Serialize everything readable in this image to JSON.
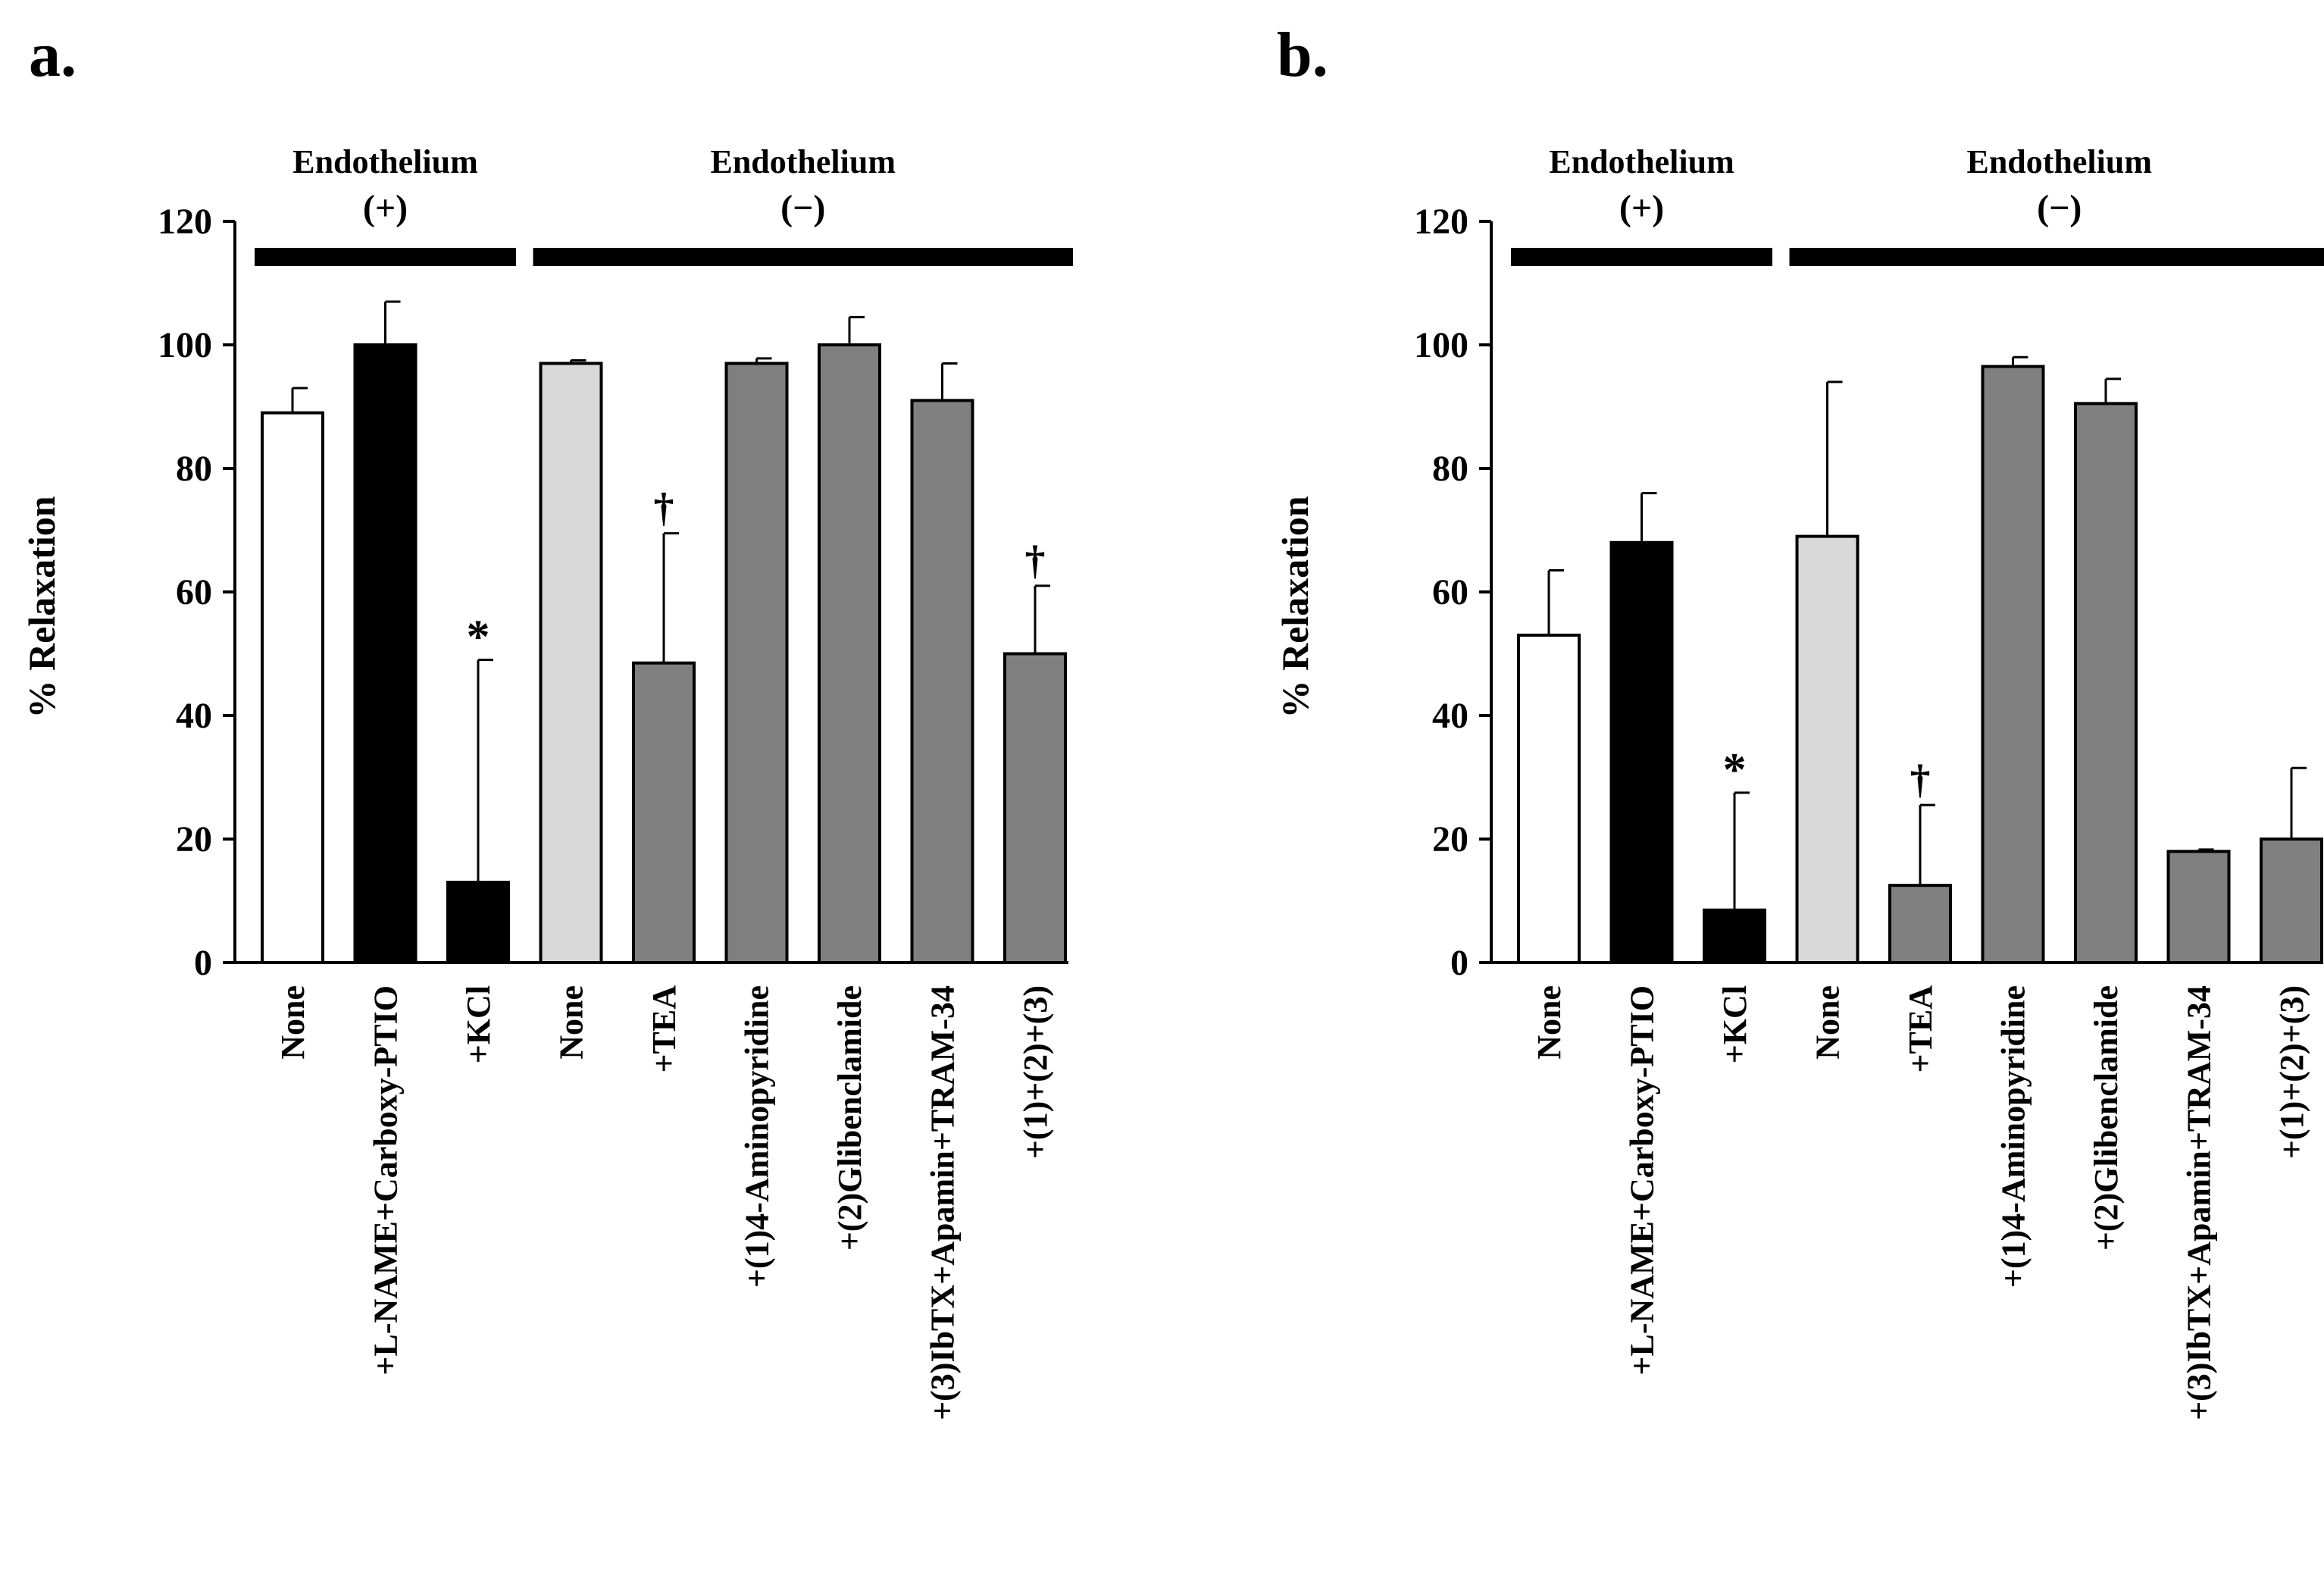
{
  "chart_data": [
    {
      "type": "bar",
      "panel_label": "a.",
      "ylabel": "% Relaxation",
      "ylim": [
        0,
        120
      ],
      "yticks": [
        0,
        20,
        40,
        60,
        80,
        100,
        120
      ],
      "groups": [
        {
          "title": "Endothelium",
          "sign": "(+)",
          "from": 0,
          "to": 2
        },
        {
          "title": "Endothelium",
          "sign": "(−)",
          "from": 3,
          "to": 8
        }
      ],
      "categories": [
        "None",
        "+L-NAME+Carboxy-PTIO",
        "+KCl",
        "None",
        "+TEA",
        "+(1)4-Aminopyridine",
        "+(2)Glibenclamide",
        "+(3)IbTX+Apamin+TRAM-34",
        "+(1)+(2)+(3)"
      ],
      "values": [
        89,
        100,
        13,
        97,
        48.5,
        97,
        100,
        91,
        50
      ],
      "errors": [
        4,
        7,
        36,
        0.5,
        21,
        0.8,
        4.5,
        6,
        11
      ],
      "fills": [
        "#ffffff",
        "#000000",
        "#000000",
        "#d9d9d9",
        "#808080",
        "#808080",
        "#808080",
        "#808080",
        "#808080"
      ],
      "annotations": [
        {
          "index": 2,
          "text": "*"
        },
        {
          "index": 4,
          "text": "†"
        },
        {
          "index": 8,
          "text": "†"
        }
      ]
    },
    {
      "type": "bar",
      "panel_label": "b.",
      "ylabel": "% Relaxation",
      "ylim": [
        0,
        120
      ],
      "yticks": [
        0,
        20,
        40,
        60,
        80,
        100,
        120
      ],
      "groups": [
        {
          "title": "Endothelium",
          "sign": "(+)",
          "from": 0,
          "to": 2
        },
        {
          "title": "Endothelium",
          "sign": "(−)",
          "from": 3,
          "to": 8
        }
      ],
      "categories": [
        "None",
        "+L-NAME+Carboxy-PTIO",
        "+KCl",
        "None",
        "+TEA",
        "+(1)4-Aminopyridine",
        "+(2)Glibenclamide",
        "+(3)IbTX+Apamin+TRAM-34",
        "+(1)+(2)+(3)"
      ],
      "values": [
        53,
        68,
        8.5,
        69,
        12.5,
        96.5,
        90.5,
        18,
        20
      ],
      "errors": [
        10.5,
        8,
        19,
        25,
        13,
        1.5,
        4,
        0.3,
        11.5
      ],
      "fills": [
        "#ffffff",
        "#000000",
        "#000000",
        "#d9d9d9",
        "#808080",
        "#808080",
        "#808080",
        "#808080",
        "#808080"
      ],
      "annotations": [
        {
          "index": 2,
          "text": "*"
        },
        {
          "index": 4,
          "text": "†"
        }
      ]
    }
  ]
}
